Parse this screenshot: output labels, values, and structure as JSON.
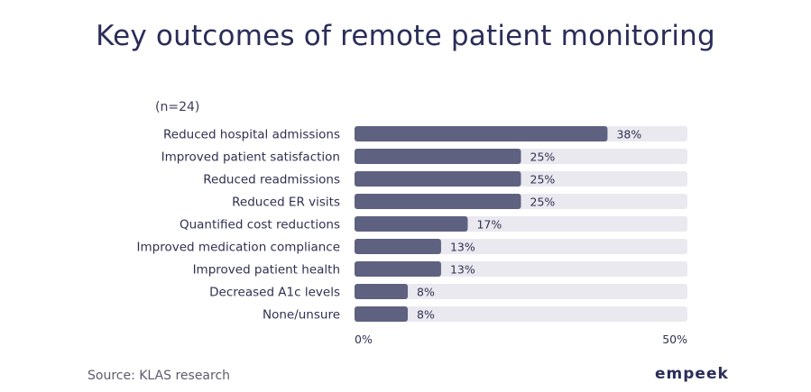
{
  "title": "Key outcomes of remote patient monitoring",
  "sample_label": "(n=24)",
  "source": "Source: KLAS research",
  "brand": "empeek",
  "colors": {
    "bar": "#5f6181",
    "track": "#eae9f0",
    "text": "#2f3150"
  },
  "chart_data": {
    "type": "bar",
    "orientation": "horizontal",
    "categories": [
      "Reduced hospital admissions",
      "Improved patient satisfaction",
      "Reduced readmissions",
      "Reduced ER visits",
      "Quantified cost reductions",
      "Improved medication compliance",
      "Improved patient health",
      "Decreased A1c levels",
      "None/unsure"
    ],
    "values": [
      38,
      25,
      25,
      25,
      17,
      13,
      13,
      8,
      8
    ],
    "value_labels": [
      "38%",
      "25%",
      "25%",
      "25%",
      "17%",
      "13%",
      "13%",
      "8%",
      "8%"
    ],
    "xlim": [
      0,
      50
    ],
    "xtick_labels": [
      "0%",
      "50%"
    ],
    "grid": false,
    "legend": "none"
  }
}
